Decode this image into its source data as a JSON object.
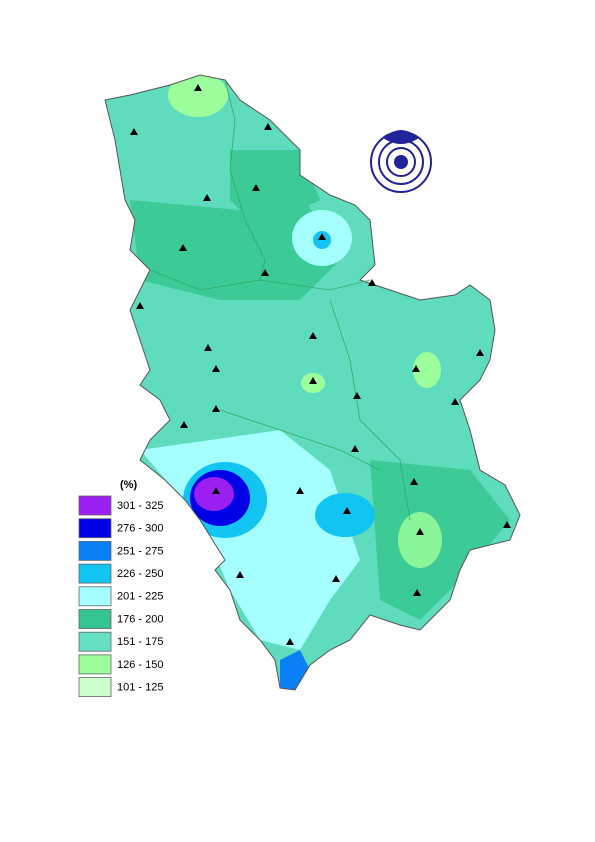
{
  "legend": {
    "title": "(%)",
    "items": [
      {
        "label": "301 - 325",
        "color": "#9a1ff0"
      },
      {
        "label": "276 - 300",
        "color": "#0000e6"
      },
      {
        "label": "251 - 275",
        "color": "#0a80f5"
      },
      {
        "label": "226 - 250",
        "color": "#12c4f2"
      },
      {
        "label": "201 - 225",
        "color": "#a6ffff"
      },
      {
        "label": "176 - 200",
        "color": "#33c48f"
      },
      {
        "label": "151 - 175",
        "color": "#66e0c2"
      },
      {
        "label": "126 - 150",
        "color": "#9cff9c"
      },
      {
        "label": "101 - 125",
        "color": "#ccffcc"
      }
    ]
  }
}
